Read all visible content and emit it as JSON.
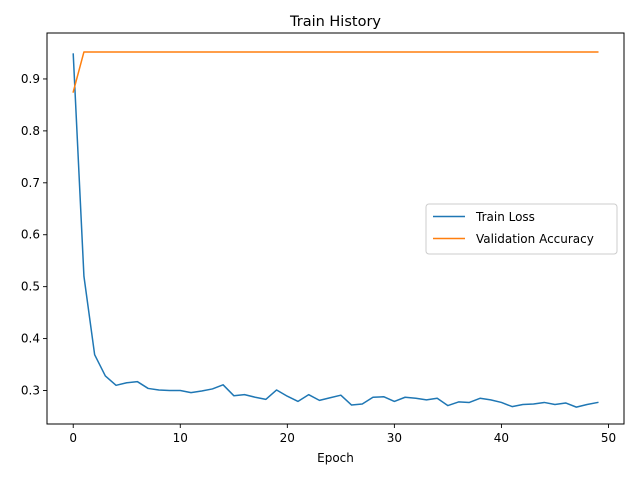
{
  "chart_data": {
    "type": "line",
    "title": "Train History",
    "xlabel": "Epoch",
    "ylabel": "",
    "xlim": [
      -2.45,
      51.45
    ],
    "ylim": [
      0.2355,
      0.9885
    ],
    "xticks": [
      0,
      10,
      20,
      30,
      40,
      50
    ],
    "yticks": [
      0.3,
      0.4,
      0.5,
      0.6,
      0.7,
      0.8,
      0.9
    ],
    "xtick_labels": [
      "0",
      "10",
      "20",
      "30",
      "40",
      "50"
    ],
    "ytick_labels": [
      "0.3",
      "0.4",
      "0.5",
      "0.6",
      "0.7",
      "0.8",
      "0.9"
    ],
    "grid": false,
    "legend_position": "center-right",
    "x": [
      0,
      1,
      2,
      3,
      4,
      5,
      6,
      7,
      8,
      9,
      10,
      11,
      12,
      13,
      14,
      15,
      16,
      17,
      18,
      19,
      20,
      21,
      22,
      23,
      24,
      25,
      26,
      27,
      28,
      29,
      30,
      31,
      32,
      33,
      34,
      35,
      36,
      37,
      38,
      39,
      40,
      41,
      42,
      43,
      44,
      45,
      46,
      47,
      48,
      49
    ],
    "series": [
      {
        "name": "Train Loss",
        "color": "#1f77b4",
        "values": [
          0.948,
          0.52,
          0.369,
          0.328,
          0.31,
          0.315,
          0.317,
          0.304,
          0.301,
          0.3,
          0.3,
          0.296,
          0.299,
          0.303,
          0.311,
          0.29,
          0.292,
          0.287,
          0.283,
          0.301,
          0.289,
          0.279,
          0.292,
          0.281,
          0.286,
          0.291,
          0.272,
          0.274,
          0.287,
          0.288,
          0.279,
          0.287,
          0.285,
          0.282,
          0.285,
          0.271,
          0.278,
          0.277,
          0.285,
          0.282,
          0.277,
          0.269,
          0.273,
          0.274,
          0.277,
          0.273,
          0.276,
          0.268,
          0.273,
          0.277
        ]
      },
      {
        "name": "Validation Accuracy",
        "color": "#ff7f0e",
        "values": [
          0.875,
          0.952,
          0.952,
          0.952,
          0.952,
          0.952,
          0.952,
          0.952,
          0.952,
          0.952,
          0.952,
          0.952,
          0.952,
          0.952,
          0.952,
          0.952,
          0.952,
          0.952,
          0.952,
          0.952,
          0.952,
          0.952,
          0.952,
          0.952,
          0.952,
          0.952,
          0.952,
          0.952,
          0.952,
          0.952,
          0.952,
          0.952,
          0.952,
          0.952,
          0.952,
          0.952,
          0.952,
          0.952,
          0.952,
          0.952,
          0.952,
          0.952,
          0.952,
          0.952,
          0.952,
          0.952,
          0.952,
          0.952,
          0.952,
          0.952
        ]
      }
    ]
  }
}
